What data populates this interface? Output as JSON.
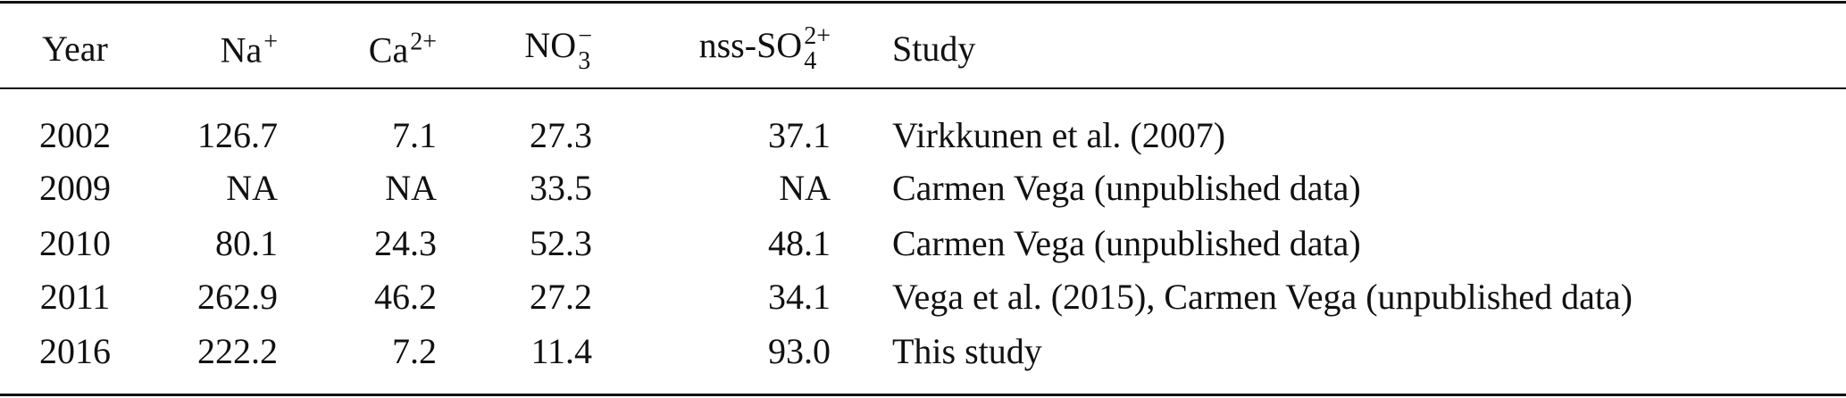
{
  "table": {
    "headers": [
      {
        "text": "Year"
      },
      {
        "text": "Na",
        "sup": "+"
      },
      {
        "text": "Ca",
        "sup": "2+"
      },
      {
        "text": "NO",
        "sub": "3",
        "sup": "−"
      },
      {
        "text": "nss-SO",
        "sub": "4",
        "sup": "2+"
      },
      {
        "text": "Study"
      }
    ],
    "rows": [
      [
        "2002",
        "126.7",
        "7.1",
        "27.3",
        "37.1",
        "Virkkunen et al. (2007)"
      ],
      [
        "2009",
        "NA",
        "NA",
        "33.5",
        "NA",
        "Carmen Vega (unpublished data)"
      ],
      [
        "2010",
        "80.1",
        "24.3",
        "52.3",
        "48.1",
        "Carmen Vega (unpublished data)"
      ],
      [
        "2011",
        "262.9",
        "46.2",
        "27.2",
        "34.1",
        "Vega et al. (2015), Carmen Vega (unpublished data)"
      ],
      [
        "2016",
        "222.2",
        "7.2",
        "11.4",
        "93.0",
        "This study"
      ]
    ]
  }
}
